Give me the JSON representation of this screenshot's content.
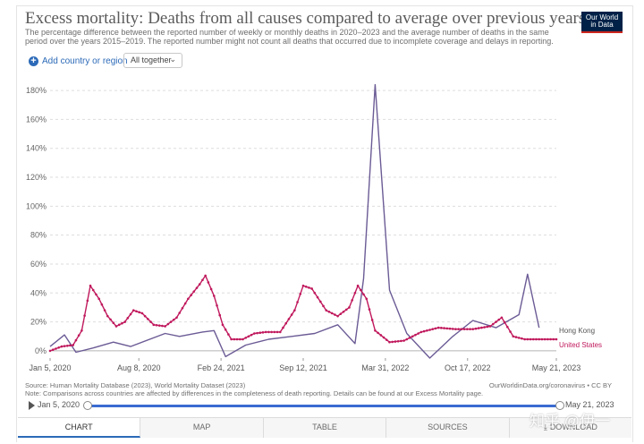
{
  "header": {
    "title": "Excess mortality: Deaths from all causes compared to average over previous years",
    "subtitle": "The percentage difference between the reported number of weekly or monthly deaths in 2020–2023 and the average number of deaths in the same period over the years 2015–2019. The reported number might not count all deaths that occurred due to incomplete coverage and delays in reporting.",
    "logo_line1": "Our World",
    "logo_line2": "in Data"
  },
  "controls": {
    "add_region_label": "Add country or region",
    "select_value": "All together",
    "add_icon": "plus-circle-icon",
    "chevron_icon": "chevron-down-icon"
  },
  "footer": {
    "source": "Source: Human Mortality Database (2023), World Mortality Dataset (2023)",
    "note": "Note: Comparisons across countries are affected by differences in the completeness of death reporting. Details can be found at our Excess Mortality page.",
    "credit": "OurWorldinData.org/coronavirus • CC BY"
  },
  "timeline": {
    "start_label": "Jan 5, 2020",
    "end_label": "May 21, 2023",
    "play_icon": "play-icon"
  },
  "tabs": [
    {
      "label": "CHART",
      "active": true
    },
    {
      "label": "MAP",
      "active": false
    },
    {
      "label": "TABLE",
      "active": false
    },
    {
      "label": "SOURCES",
      "active": false
    },
    {
      "label": "DOWNLOAD",
      "active": false,
      "icon": "download-icon"
    }
  ],
  "watermark": "知乎 @伊一",
  "chart_data": {
    "type": "line",
    "title": "",
    "xlabel": "",
    "ylabel": "",
    "ylim": [
      -5,
      185
    ],
    "y_ticks": [
      0,
      20,
      40,
      60,
      80,
      100,
      120,
      140,
      160,
      180
    ],
    "y_tick_labels": [
      "0%",
      "20%",
      "40%",
      "60%",
      "80%",
      "100%",
      "120%",
      "140%",
      "160%",
      "180%"
    ],
    "x_range": [
      "2020-01-05",
      "2023-05-21"
    ],
    "x_ticks": [
      {
        "date": "2020-01-05",
        "label": "Jan 5, 2020"
      },
      {
        "date": "2020-08-08",
        "label": "Aug 8, 2020"
      },
      {
        "date": "2021-02-24",
        "label": "Feb 24, 2021"
      },
      {
        "date": "2021-09-12",
        "label": "Sep 12, 2021"
      },
      {
        "date": "2022-03-31",
        "label": "Mar 31, 2022"
      },
      {
        "date": "2022-10-17",
        "label": "Oct 17, 2022"
      },
      {
        "date": "2023-05-21",
        "label": "May 21, 2023"
      }
    ],
    "grid": "horizontal",
    "legend": "right end labels",
    "series": [
      {
        "name": "Hong Kong",
        "color": "#6b5b95",
        "markers": false,
        "points": [
          [
            "2020-01-05",
            3
          ],
          [
            "2020-02-09",
            11
          ],
          [
            "2020-03-08",
            -1
          ],
          [
            "2020-04-19",
            2
          ],
          [
            "2020-06-07",
            6
          ],
          [
            "2020-07-19",
            3
          ],
          [
            "2020-10-11",
            12
          ],
          [
            "2020-11-15",
            10
          ],
          [
            "2021-01-10",
            13
          ],
          [
            "2021-02-07",
            14
          ],
          [
            "2021-03-07",
            -4
          ],
          [
            "2021-04-25",
            4
          ],
          [
            "2021-06-20",
            8
          ],
          [
            "2021-08-15",
            10
          ],
          [
            "2021-10-10",
            12
          ],
          [
            "2021-12-05",
            18
          ],
          [
            "2022-01-16",
            5
          ],
          [
            "2022-02-06",
            50
          ],
          [
            "2022-03-06",
            184
          ],
          [
            "2022-04-10",
            42
          ],
          [
            "2022-05-22",
            12
          ],
          [
            "2022-07-17",
            -5
          ],
          [
            "2022-09-11",
            10
          ],
          [
            "2022-10-30",
            21
          ],
          [
            "2022-12-25",
            16
          ],
          [
            "2023-02-19",
            25
          ],
          [
            "2023-03-12",
            53
          ],
          [
            "2023-04-09",
            16
          ]
        ]
      },
      {
        "name": "United States",
        "color": "#c0185c",
        "markers": true,
        "points": [
          [
            "2020-01-05",
            0
          ],
          [
            "2020-02-02",
            3
          ],
          [
            "2020-03-01",
            4
          ],
          [
            "2020-03-22",
            14
          ],
          [
            "2020-04-12",
            45
          ],
          [
            "2020-05-03",
            36
          ],
          [
            "2020-05-24",
            24
          ],
          [
            "2020-06-14",
            17
          ],
          [
            "2020-07-05",
            20
          ],
          [
            "2020-07-26",
            28
          ],
          [
            "2020-08-16",
            26
          ],
          [
            "2020-09-13",
            18
          ],
          [
            "2020-10-11",
            17
          ],
          [
            "2020-11-08",
            23
          ],
          [
            "2020-12-06",
            36
          ],
          [
            "2021-01-03",
            46
          ],
          [
            "2021-01-17",
            52
          ],
          [
            "2021-02-07",
            38
          ],
          [
            "2021-02-28",
            18
          ],
          [
            "2021-03-21",
            8
          ],
          [
            "2021-04-18",
            8
          ],
          [
            "2021-05-16",
            12
          ],
          [
            "2021-06-13",
            13
          ],
          [
            "2021-07-18",
            13
          ],
          [
            "2021-08-22",
            28
          ],
          [
            "2021-09-12",
            45
          ],
          [
            "2021-10-03",
            43
          ],
          [
            "2021-11-07",
            28
          ],
          [
            "2021-12-05",
            24
          ],
          [
            "2022-01-02",
            30
          ],
          [
            "2022-01-23",
            45
          ],
          [
            "2022-02-13",
            36
          ],
          [
            "2022-03-06",
            14
          ],
          [
            "2022-04-10",
            6
          ],
          [
            "2022-05-15",
            7
          ],
          [
            "2022-06-26",
            13
          ],
          [
            "2022-08-07",
            16
          ],
          [
            "2022-09-18",
            15
          ],
          [
            "2022-10-30",
            15
          ],
          [
            "2022-12-11",
            17
          ],
          [
            "2023-01-08",
            23
          ],
          [
            "2023-02-05",
            10
          ],
          [
            "2023-03-05",
            8
          ],
          [
            "2023-04-09",
            8
          ],
          [
            "2023-05-21",
            8
          ]
        ]
      }
    ]
  }
}
